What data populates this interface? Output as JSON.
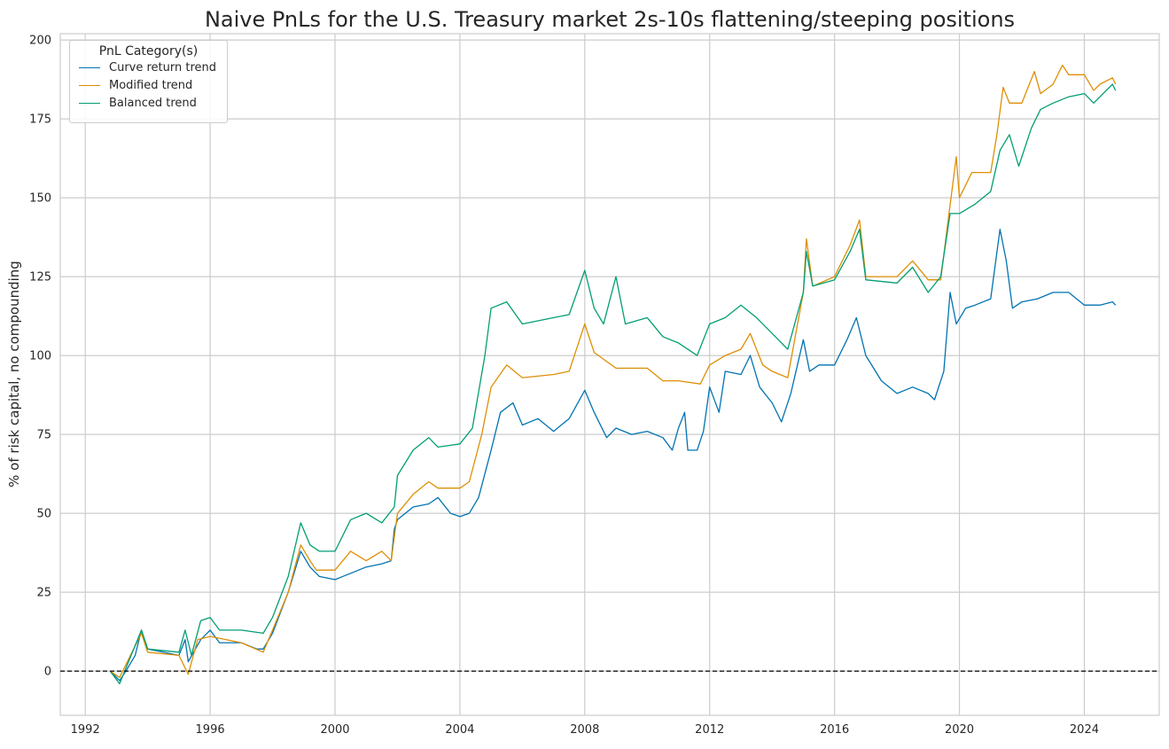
{
  "chart_data": {
    "type": "line",
    "title": "Naive PnLs for the U.S. Treasury market 2s-10s flattening/steeping positions",
    "xlabel": "",
    "ylabel": "% of risk capital, no compounding",
    "xlim": [
      1991.2,
      2026.4
    ],
    "ylim": [
      -14,
      202
    ],
    "xticks": [
      1992,
      1996,
      2000,
      2004,
      2008,
      2012,
      2016,
      2020,
      2024
    ],
    "yticks": [
      0,
      25,
      50,
      75,
      100,
      125,
      150,
      175,
      200
    ],
    "grid": true,
    "reference_line": {
      "y": 0,
      "style": "dashed",
      "color": "#000000"
    },
    "legend": {
      "title": "PnL Category(s)",
      "placement": "top-left"
    },
    "series": [
      {
        "name": "Curve return trend",
        "color": "#0173b2",
        "x": [
          1992.8,
          1993.1,
          1993.3,
          1993.6,
          1993.8,
          1994.0,
          1994.5,
          1995.0,
          1995.2,
          1995.3,
          1995.7,
          1996.0,
          1996.3,
          1997.0,
          1997.5,
          1997.7,
          1998.0,
          1998.5,
          1998.9,
          1999.2,
          1999.5,
          2000.0,
          2000.5,
          2001.0,
          2001.5,
          2001.8,
          2001.9,
          2002.0,
          2002.5,
          2003.0,
          2003.3,
          2003.7,
          2004.0,
          2004.3,
          2004.6,
          2005.0,
          2005.3,
          2005.7,
          2006.0,
          2006.5,
          2007.0,
          2007.5,
          2008.0,
          2008.3,
          2008.7,
          2009.0,
          2009.5,
          2010.0,
          2010.5,
          2010.8,
          2011.0,
          2011.2,
          2011.3,
          2011.6,
          2011.8,
          2012.0,
          2012.3,
          2012.5,
          2013.0,
          2013.3,
          2013.6,
          2014.0,
          2014.3,
          2014.6,
          2015.0,
          2015.2,
          2015.5,
          2016.0,
          2016.4,
          2016.7,
          2017.0,
          2017.5,
          2018.0,
          2018.5,
          2019.0,
          2019.2,
          2019.5,
          2019.7,
          2019.9,
          2020.2,
          2020.5,
          2021.0,
          2021.3,
          2021.5,
          2021.7,
          2022.0,
          2022.5,
          2023.0,
          2023.5,
          2024.0,
          2024.5,
          2024.9,
          2025.0
        ],
        "y": [
          0,
          -3,
          0,
          5,
          13,
          7,
          6,
          5,
          10,
          3,
          10,
          13,
          9,
          9,
          7,
          7,
          12,
          25,
          38,
          33,
          30,
          29,
          31,
          33,
          34,
          35,
          45,
          48,
          52,
          53,
          55,
          50,
          49,
          50,
          55,
          70,
          82,
          85,
          78,
          80,
          76,
          80,
          89,
          82,
          74,
          77,
          75,
          76,
          74,
          70,
          77,
          82,
          70,
          70,
          76,
          90,
          82,
          95,
          94,
          100,
          90,
          85,
          79,
          88,
          105,
          95,
          97,
          97,
          105,
          112,
          100,
          92,
          88,
          90,
          88,
          86,
          95,
          120,
          110,
          115,
          116,
          118,
          140,
          130,
          115,
          117,
          118,
          120,
          120,
          116,
          116,
          117,
          116
        ]
      },
      {
        "name": "Modified trend",
        "color": "#de8f05",
        "x": [
          1992.8,
          1993.1,
          1993.8,
          1994.0,
          1995.0,
          1995.3,
          1995.6,
          1996.0,
          1997.0,
          1997.7,
          1998.0,
          1998.5,
          1998.9,
          1999.2,
          1999.4,
          2000.0,
          2000.5,
          2001.0,
          2001.5,
          2001.8,
          2002.0,
          2002.5,
          2003.0,
          2003.3,
          2004.0,
          2004.3,
          2004.7,
          2005.0,
          2005.5,
          2006.0,
          2007.0,
          2007.5,
          2008.0,
          2008.3,
          2009.0,
          2010.0,
          2010.5,
          2011.0,
          2011.7,
          2012.0,
          2012.5,
          2013.0,
          2013.3,
          2013.7,
          2014.0,
          2014.5,
          2015.0,
          2015.1,
          2015.3,
          2016.0,
          2016.5,
          2016.8,
          2017.0,
          2018.0,
          2018.5,
          2019.0,
          2019.4,
          2019.6,
          2019.9,
          2020.0,
          2020.4,
          2021.0,
          2021.2,
          2021.4,
          2021.6,
          2022.0,
          2022.4,
          2022.6,
          2023.0,
          2023.3,
          2023.5,
          2024.0,
          2024.3,
          2024.5,
          2024.9,
          2025.0
        ],
        "y": [
          0,
          -2,
          12,
          6,
          5,
          -1,
          10,
          11,
          9,
          6,
          13,
          25,
          40,
          35,
          32,
          32,
          38,
          35,
          38,
          35,
          50,
          56,
          60,
          58,
          58,
          60,
          75,
          90,
          97,
          93,
          94,
          95,
          110,
          101,
          96,
          96,
          92,
          92,
          91,
          97,
          100,
          102,
          107,
          97,
          95,
          93,
          120,
          137,
          122,
          125,
          135,
          143,
          125,
          125,
          130,
          124,
          124,
          140,
          163,
          150,
          158,
          158,
          170,
          185,
          180,
          180,
          190,
          183,
          186,
          192,
          189,
          189,
          184,
          186,
          188,
          186
        ]
      },
      {
        "name": "Balanced trend",
        "color": "#029e73",
        "x": [
          1992.8,
          1993.1,
          1993.8,
          1994.0,
          1995.0,
          1995.2,
          1995.4,
          1995.7,
          1996.0,
          1996.3,
          1997.0,
          1997.7,
          1998.0,
          1998.5,
          1998.9,
          1999.2,
          1999.5,
          2000.0,
          2000.5,
          2001.0,
          2001.5,
          2001.9,
          2002.0,
          2002.5,
          2003.0,
          2003.3,
          2004.0,
          2004.4,
          2004.8,
          2005.0,
          2005.5,
          2006.0,
          2007.0,
          2007.5,
          2008.0,
          2008.3,
          2008.6,
          2009.0,
          2009.3,
          2010.0,
          2010.5,
          2011.0,
          2011.6,
          2012.0,
          2012.5,
          2013.0,
          2013.5,
          2014.0,
          2014.5,
          2015.0,
          2015.1,
          2015.3,
          2016.0,
          2016.5,
          2016.8,
          2017.0,
          2018.0,
          2018.5,
          2019.0,
          2019.4,
          2019.7,
          2020.0,
          2020.5,
          2021.0,
          2021.3,
          2021.6,
          2021.9,
          2022.3,
          2022.6,
          2023.0,
          2023.5,
          2024.0,
          2024.3,
          2024.9,
          2025.0
        ],
        "y": [
          0,
          -4,
          13,
          7,
          6,
          13,
          5,
          16,
          17,
          13,
          13,
          12,
          17,
          30,
          47,
          40,
          38,
          38,
          48,
          50,
          47,
          52,
          62,
          70,
          74,
          71,
          72,
          77,
          100,
          115,
          117,
          110,
          112,
          113,
          127,
          115,
          110,
          125,
          110,
          112,
          106,
          104,
          100,
          110,
          112,
          116,
          112,
          107,
          102,
          120,
          133,
          122,
          124,
          133,
          140,
          124,
          123,
          128,
          120,
          125,
          145,
          145,
          148,
          152,
          165,
          170,
          160,
          172,
          178,
          180,
          182,
          183,
          180,
          186,
          184
        ]
      }
    ]
  }
}
